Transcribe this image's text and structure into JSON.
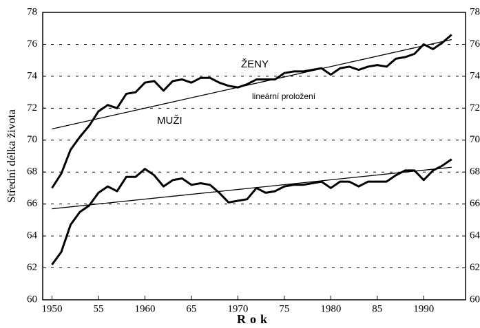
{
  "chart_data": {
    "type": "line",
    "ylabel": "Střední délka života",
    "xlabel": "Rok",
    "x": [
      1950,
      1951,
      1952,
      1953,
      1954,
      1955,
      1956,
      1957,
      1958,
      1959,
      1960,
      1961,
      1962,
      1963,
      1964,
      1965,
      1966,
      1967,
      1968,
      1969,
      1970,
      1971,
      1972,
      1973,
      1974,
      1975,
      1976,
      1977,
      1978,
      1979,
      1980,
      1981,
      1982,
      1983,
      1984,
      1985,
      1986,
      1987,
      1988,
      1989,
      1990,
      1991,
      1992,
      1993
    ],
    "series": [
      {
        "name": "ŽENY",
        "color": "#000000",
        "values": [
          67.0,
          67.9,
          69.4,
          70.2,
          70.9,
          71.8,
          72.2,
          72.0,
          72.9,
          73.0,
          73.6,
          73.7,
          73.1,
          73.7,
          73.8,
          73.6,
          73.9,
          73.9,
          73.6,
          73.4,
          73.3,
          73.5,
          73.8,
          73.8,
          73.8,
          74.2,
          74.3,
          74.3,
          74.4,
          74.5,
          74.1,
          74.5,
          74.6,
          74.4,
          74.6,
          74.7,
          74.6,
          75.1,
          75.2,
          75.4,
          76.0,
          75.7,
          76.1,
          76.6
        ]
      },
      {
        "name": "MUŽI",
        "color": "#000000",
        "values": [
          62.2,
          63.0,
          64.7,
          65.5,
          65.9,
          66.7,
          67.1,
          66.8,
          67.7,
          67.7,
          68.2,
          67.8,
          67.1,
          67.5,
          67.6,
          67.2,
          67.3,
          67.2,
          66.7,
          66.1,
          66.2,
          66.3,
          67.0,
          66.7,
          66.8,
          67.1,
          67.2,
          67.2,
          67.3,
          67.4,
          67.0,
          67.4,
          67.4,
          67.1,
          67.4,
          67.4,
          67.4,
          67.8,
          68.1,
          68.1,
          67.5,
          68.1,
          68.4,
          68.8
        ]
      }
    ],
    "trend_label": "lineární proložení",
    "trend_lines": [
      {
        "x": [
          1950,
          1993
        ],
        "values": [
          70.7,
          76.3
        ]
      },
      {
        "x": [
          1950,
          1993
        ],
        "values": [
          65.7,
          68.3
        ]
      }
    ],
    "xlim": [
      1949,
      1994.5
    ],
    "xticks": [
      1950,
      {
        "value": 1955,
        "label": "55"
      },
      1960,
      {
        "value": 1965,
        "label": "65"
      },
      1970,
      {
        "value": 1975,
        "label": "75"
      },
      1980,
      {
        "value": 1985,
        "label": "85"
      },
      1990
    ],
    "ylim": [
      60,
      78
    ],
    "yticks": [
      60,
      62,
      64,
      66,
      68,
      70,
      72,
      74,
      76,
      78
    ],
    "y2lim": [
      60,
      78
    ],
    "y2ticks": [
      60,
      62,
      64,
      66,
      68,
      70,
      72,
      74,
      76,
      78
    ],
    "grid": true
  }
}
